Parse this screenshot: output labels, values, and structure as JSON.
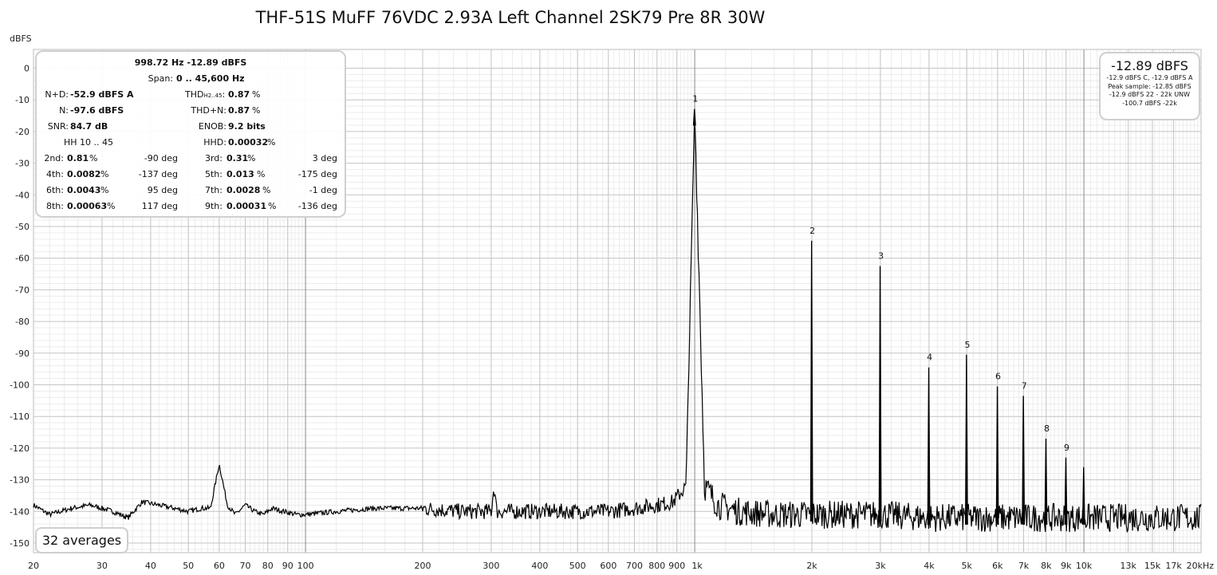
{
  "chart_data": {
    "type": "line",
    "title": "THF-51S MuFF 76VDC 2.93A Left Channel 2SK79 Pre 8R 30W",
    "ylabel": "dBFS",
    "xscale": "log",
    "xlim": [
      20,
      20000
    ],
    "ylim": [
      -150,
      0
    ],
    "y_ticks": [
      0,
      -10,
      -20,
      -30,
      -40,
      -50,
      -60,
      -70,
      -80,
      -90,
      -100,
      -110,
      -120,
      -130,
      -140,
      -150
    ],
    "y_tick_labels": [
      "0",
      "-10",
      "-20",
      "-30",
      "-40",
      "-50",
      "-60",
      "-70",
      "-80",
      "-90",
      "-100",
      "-110",
      "-120",
      "-130",
      "-140",
      "-150"
    ],
    "x_ticks": [
      {
        "value": 20,
        "label": "20"
      },
      {
        "value": 30,
        "label": "30"
      },
      {
        "value": 40,
        "label": "40"
      },
      {
        "value": 50,
        "label": "50"
      },
      {
        "value": 60,
        "label": "60"
      },
      {
        "value": 70,
        "label": "70"
      },
      {
        "value": 80,
        "label": "80"
      },
      {
        "value": 90,
        "label": "90"
      },
      {
        "value": 100,
        "label": "100"
      },
      {
        "value": 200,
        "label": "200"
      },
      {
        "value": 300,
        "label": "300"
      },
      {
        "value": 400,
        "label": "400"
      },
      {
        "value": 500,
        "label": "500"
      },
      {
        "value": 600,
        "label": "600"
      },
      {
        "value": 700,
        "label": "700"
      },
      {
        "value": 800,
        "label": "800"
      },
      {
        "value": 900,
        "label": "900"
      },
      {
        "value": 1000,
        "label": "1k"
      },
      {
        "value": 2000,
        "label": "2k"
      },
      {
        "value": 3000,
        "label": "3k"
      },
      {
        "value": 4000,
        "label": "4k"
      },
      {
        "value": 5000,
        "label": "5k"
      },
      {
        "value": 6000,
        "label": "6k"
      },
      {
        "value": 7000,
        "label": "7k"
      },
      {
        "value": 8000,
        "label": "8k"
      },
      {
        "value": 9000,
        "label": "9k"
      },
      {
        "value": 10000,
        "label": "10k"
      },
      {
        "value": 13000,
        "label": "13k"
      },
      {
        "value": 15000,
        "label": "15k"
      },
      {
        "value": 17000,
        "label": "17k"
      },
      {
        "value": 20000,
        "label": "20kHz"
      }
    ],
    "grid": true,
    "series": [
      {
        "color": "#000000",
        "noise_floor": [
          [
            20,
            -138
          ],
          [
            22,
            -141
          ],
          [
            25,
            -139
          ],
          [
            28,
            -138
          ],
          [
            30,
            -139
          ],
          [
            32,
            -140
          ],
          [
            35,
            -142
          ],
          [
            38,
            -137
          ],
          [
            42,
            -138
          ],
          [
            46,
            -139
          ],
          [
            50,
            -140
          ],
          [
            54,
            -139
          ],
          [
            57,
            -139
          ],
          [
            60,
            -125
          ],
          [
            63,
            -138
          ],
          [
            66,
            -141
          ],
          [
            70,
            -138
          ],
          [
            74,
            -140
          ],
          [
            78,
            -141
          ],
          [
            82,
            -139
          ],
          [
            88,
            -140
          ],
          [
            95,
            -141
          ],
          [
            100,
            -141
          ],
          [
            120,
            -140
          ],
          [
            150,
            -139
          ],
          [
            200,
            -139
          ],
          [
            250,
            -140
          ],
          [
            300,
            -140
          ],
          [
            305,
            -132
          ],
          [
            310,
            -140
          ],
          [
            400,
            -140
          ],
          [
            500,
            -140
          ],
          [
            600,
            -140
          ],
          [
            700,
            -139
          ],
          [
            800,
            -138
          ],
          [
            880,
            -137
          ],
          [
            950,
            -132
          ],
          [
            1000,
            -13
          ],
          [
            1060,
            -132
          ],
          [
            1150,
            -138
          ],
          [
            1300,
            -140
          ],
          [
            1600,
            -141
          ],
          [
            2000,
            -141
          ],
          [
            3000,
            -141
          ],
          [
            4000,
            -142
          ],
          [
            5000,
            -142
          ],
          [
            6000,
            -142
          ],
          [
            8000,
            -142
          ],
          [
            10000,
            -142
          ],
          [
            13000,
            -142
          ],
          [
            16000,
            -142
          ],
          [
            20000,
            -142
          ]
        ],
        "peaks": [
          {
            "label": "1",
            "freq": 998.72,
            "level": -12.89
          },
          {
            "label": "2",
            "freq": 1997,
            "level": -54.5
          },
          {
            "label": "3",
            "freq": 2996,
            "level": -62.5
          },
          {
            "label": "4",
            "freq": 3995,
            "level": -94.5
          },
          {
            "label": "5",
            "freq": 4994,
            "level": -90.5
          },
          {
            "label": "6",
            "freq": 5992,
            "level": -100.5
          },
          {
            "label": "7",
            "freq": 6991,
            "level": -103.5
          },
          {
            "label": "8",
            "freq": 7990,
            "level": -117
          },
          {
            "label": "9",
            "freq": 8989,
            "level": -123
          },
          {
            "label": "",
            "freq": 9987,
            "level": -126
          }
        ]
      }
    ]
  },
  "stats": {
    "header": "998.72 Hz  -12.89 dBFS",
    "span_label": "Span:",
    "span_value": "0 .. 45,600 Hz",
    "nd_label": "N+D:",
    "nd_value": "-52.9 dBFS A",
    "thd_label": "THD",
    "thd_sub": "H2..45",
    "thd_colon": ":",
    "thd_value": "0.87",
    "thd_unit": "%",
    "n_label": "N:",
    "n_value": "-97.6 dBFS",
    "thdn_label": "THD+N:",
    "thdn_value": "0.87",
    "thdn_unit": "%",
    "snr_label": "SNR:",
    "snr_value": "84.7 dB",
    "enob_label": "ENOB:",
    "enob_value": "9.2 bits",
    "hh_label": "HH 10 .. 45",
    "hhd_label": "HHD:",
    "hhd_value": "0.00032",
    "hhd_unit": "%",
    "harmonics": [
      {
        "l1": "2nd:",
        "v1": "0.81",
        "u1": "%",
        "p1": "-90 deg",
        "l2": "3rd:",
        "v2": "0.31",
        "u2": "%",
        "p2": "3 deg"
      },
      {
        "l1": "4th:",
        "v1": "0.0082",
        "u1": "%",
        "p1": "-137 deg",
        "l2": "5th:",
        "v2": "0.013",
        "u2": "%",
        "p2": "-175 deg"
      },
      {
        "l1": "6th:",
        "v1": "0.0043",
        "u1": "%",
        "p1": "95 deg",
        "l2": "7th:",
        "v2": "0.0028",
        "u2": "%",
        "p2": "-1 deg"
      },
      {
        "l1": "8th:",
        "v1": "0.00063",
        "u1": "%",
        "p1": "117 deg",
        "l2": "9th:",
        "v2": "0.00031",
        "u2": "%",
        "p2": "-136 deg"
      }
    ]
  },
  "level_box": {
    "main": "-12.89 dBFS",
    "line1": "-12.9 dBFS C, -12.9 dBFS A",
    "line2": "Peak sample: -12.85 dBFS",
    "line3": "-12.9 dBFS 22 - 22k UNW",
    "line4": "-100.7 dBFS -22k"
  },
  "averages_label": "32 averages"
}
